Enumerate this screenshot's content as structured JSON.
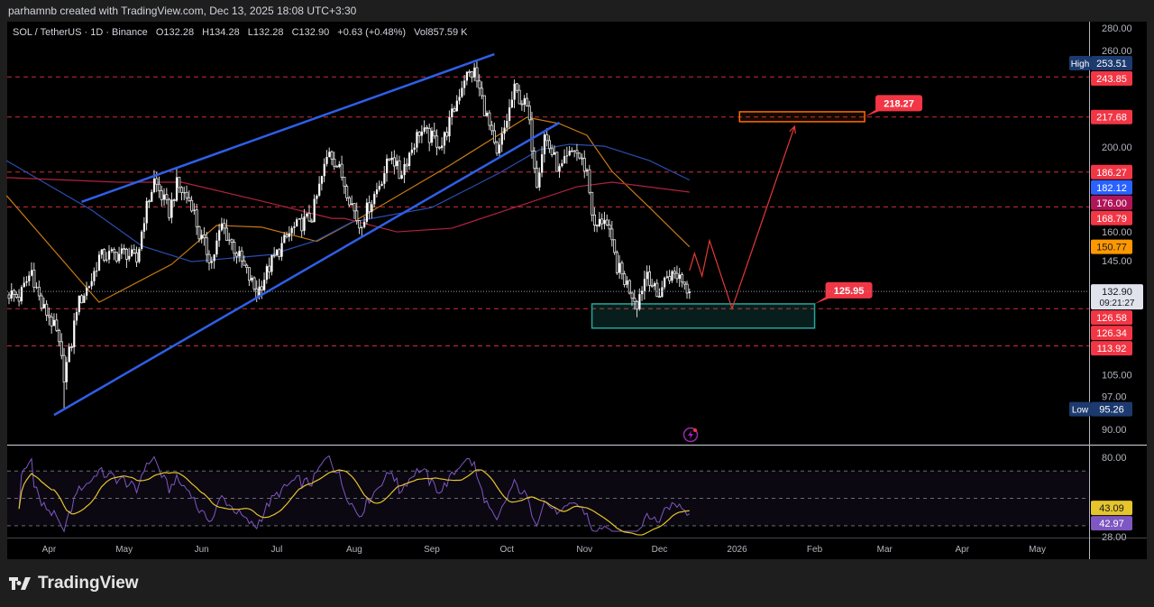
{
  "header": {
    "created_by": "parhamnb created with TradingView.com, Dec 13, 2025 18:08 UTC+3:30"
  },
  "legend": {
    "symbol": "SOL / TetherUS · 1D · Binance",
    "open": "O132.28",
    "high": "H134.28",
    "low": "L132.28",
    "close": "C132.90",
    "change": "+0.63 (+0.48%)",
    "volume": "Vol857.59 K"
  },
  "footer": {
    "brand": "TradingView"
  },
  "colors": {
    "channel": "#2f5fe8",
    "ma_fast": "#c77a12",
    "ma_mid": "#2a4fb0",
    "ma_slow": "#b0223f",
    "level": "#f23645",
    "rsi": "#7e57c2",
    "rsi_ma": "#e5c42c",
    "zone_support": "#26a69a",
    "zone_target": "#ff6d00"
  },
  "chart_data": {
    "type": "candlestick",
    "scale": "log",
    "ylim": [
      90,
      280
    ],
    "xlim": [
      "2025-03-15",
      "2026-05-25"
    ],
    "price_ticks": [
      "280.00",
      "260.00",
      "200.00",
      "160.00",
      "145.00",
      "105.00",
      "97.00",
      "90.00"
    ],
    "time_ticks": [
      {
        "label": "Apr",
        "date": "2025-04-01"
      },
      {
        "label": "May",
        "date": "2025-05-01"
      },
      {
        "label": "Jun",
        "date": "2025-06-01"
      },
      {
        "label": "Jul",
        "date": "2025-07-01"
      },
      {
        "label": "Aug",
        "date": "2025-08-01"
      },
      {
        "label": "Sep",
        "date": "2025-09-01"
      },
      {
        "label": "Oct",
        "date": "2025-10-01"
      },
      {
        "label": "Nov",
        "date": "2025-11-01"
      },
      {
        "label": "Dec",
        "date": "2025-12-01"
      },
      {
        "label": "2026",
        "date": "2026-01-01"
      },
      {
        "label": "Feb",
        "date": "2026-02-01"
      },
      {
        "label": "Mar",
        "date": "2026-03-01"
      },
      {
        "label": "Apr",
        "date": "2026-04-01"
      },
      {
        "label": "May",
        "date": "2026-05-01"
      }
    ],
    "close_path": [
      [
        "2025-03-16",
        132.2
      ],
      [
        "2025-03-20",
        130.6
      ],
      [
        "2025-03-25",
        141.0
      ],
      [
        "2025-03-29",
        127.3
      ],
      [
        "2025-04-01",
        124.1
      ],
      [
        "2025-04-04",
        117.9
      ],
      [
        "2025-04-07",
        105.0
      ],
      [
        "2025-04-10",
        114.9
      ],
      [
        "2025-04-12",
        127.3
      ],
      [
        "2025-04-18",
        137.4
      ],
      [
        "2025-04-21",
        146.5
      ],
      [
        "2025-04-27",
        147.5
      ],
      [
        "2025-05-02",
        148.3
      ],
      [
        "2025-05-06",
        144.6
      ],
      [
        "2025-05-09",
        164.3
      ],
      [
        "2025-05-13",
        181.9
      ],
      [
        "2025-05-19",
        166.4
      ],
      [
        "2025-05-22",
        179.6
      ],
      [
        "2025-05-28",
        170.7
      ],
      [
        "2025-05-31",
        156.1
      ],
      [
        "2025-06-05",
        144.6
      ],
      [
        "2025-06-09",
        160.2
      ],
      [
        "2025-06-15",
        148.3
      ],
      [
        "2025-06-23",
        132.2
      ],
      [
        "2025-06-29",
        144.6
      ],
      [
        "2025-07-07",
        158.1
      ],
      [
        "2025-07-15",
        164.3
      ],
      [
        "2025-07-22",
        199.0
      ],
      [
        "2025-07-27",
        184.3
      ],
      [
        "2025-08-03",
        160.2
      ],
      [
        "2025-08-10",
        177.4
      ],
      [
        "2025-08-16",
        196.4
      ],
      [
        "2025-08-19",
        184.3
      ],
      [
        "2025-08-27",
        209.4
      ],
      [
        "2025-09-05",
        201.5
      ],
      [
        "2025-09-10",
        223.1
      ],
      [
        "2025-09-14",
        244.0
      ],
      [
        "2025-09-18",
        247.1
      ],
      [
        "2025-09-23",
        217.5
      ],
      [
        "2025-09-27",
        193.9
      ],
      [
        "2025-10-04",
        234.8
      ],
      [
        "2025-10-09",
        223.1
      ],
      [
        "2025-10-13",
        181.9
      ],
      [
        "2025-10-16",
        206.7
      ],
      [
        "2025-10-22",
        186.7
      ],
      [
        "2025-10-28",
        199.0
      ],
      [
        "2025-11-02",
        186.7
      ],
      [
        "2025-11-05",
        158.1
      ],
      [
        "2025-11-09",
        164.3
      ],
      [
        "2025-11-14",
        142.8
      ],
      [
        "2025-11-22",
        128.9
      ],
      [
        "2025-11-26",
        141.0
      ],
      [
        "2025-11-30",
        130.6
      ],
      [
        "2025-12-04",
        139.2
      ],
      [
        "2025-12-09",
        139.2
      ],
      [
        "2025-12-13",
        132.9
      ]
    ],
    "period_low": {
      "date": "2025-04-07",
      "value": 95.26
    },
    "period_high": {
      "date": "2025-09-18",
      "value": 253.51
    },
    "moving_averages": [
      {
        "color_key": "ma_fast",
        "points": [
          [
            "2025-03-15",
            174.3
          ],
          [
            "2025-04-21",
            128.9
          ],
          [
            "2025-05-20",
            143.5
          ],
          [
            "2025-06-07",
            160.2
          ],
          [
            "2025-06-25",
            159.4
          ],
          [
            "2025-07-17",
            153.1
          ],
          [
            "2025-08-03",
            163.4
          ],
          [
            "2025-09-08",
            189.7
          ],
          [
            "2025-10-09",
            217.5
          ],
          [
            "2025-10-22",
            213.6
          ],
          [
            "2025-11-02",
            206.7
          ],
          [
            "2025-11-12",
            186.7
          ],
          [
            "2025-11-27",
            168.5
          ],
          [
            "2025-12-13",
            150.77
          ]
        ]
      },
      {
        "color_key": "ma_mid",
        "points": [
          [
            "2025-03-15",
            192.4
          ],
          [
            "2025-04-18",
            167.3
          ],
          [
            "2025-05-08",
            151.2
          ],
          [
            "2025-05-28",
            144.6
          ],
          [
            "2025-06-29",
            147.5
          ],
          [
            "2025-07-17",
            153.5
          ],
          [
            "2025-07-31",
            161.7
          ],
          [
            "2025-09-01",
            168.5
          ],
          [
            "2025-09-28",
            185.8
          ],
          [
            "2025-10-14",
            198.4
          ],
          [
            "2025-10-26",
            201.5
          ],
          [
            "2025-11-09",
            200.4
          ],
          [
            "2025-11-27",
            192.4
          ],
          [
            "2025-12-13",
            182.12
          ]
        ]
      },
      {
        "color_key": "ma_slow",
        "points": [
          [
            "2025-03-15",
            183.4
          ],
          [
            "2025-04-29",
            181.0
          ],
          [
            "2025-05-24",
            181.0
          ],
          [
            "2025-06-25",
            171.6
          ],
          [
            "2025-07-23",
            163.4
          ],
          [
            "2025-07-28",
            163.4
          ],
          [
            "2025-08-18",
            157.3
          ],
          [
            "2025-09-09",
            158.9
          ],
          [
            "2025-10-04",
            168.5
          ],
          [
            "2025-10-29",
            178.7
          ],
          [
            "2025-11-12",
            181.0
          ],
          [
            "2025-12-13",
            176.0
          ]
        ]
      }
    ],
    "channel_lines": [
      {
        "from": [
          "2025-04-14",
          171.2
        ],
        "to": [
          "2025-09-26",
          260.0
        ]
      },
      {
        "from": [
          "2025-04-03",
          93.7
        ],
        "to": [
          "2025-10-22",
          214.2
        ]
      }
    ],
    "levels": [
      243.85,
      217.68,
      186.27,
      168.79,
      126.58,
      113.92
    ],
    "support_zone": {
      "from": "2025-11-04",
      "to": "2026-02-01",
      "top": 128.3,
      "bottom": 119.8,
      "label": "125.95"
    },
    "target_zone": {
      "from": "2026-01-02",
      "to": "2026-02-21",
      "top": 220.9,
      "bottom": 214.8,
      "label": "218.27"
    },
    "projection_path": [
      [
        "2025-12-13",
        141.0
      ],
      [
        "2025-12-15",
        148.0
      ],
      [
        "2025-12-18",
        138.8
      ],
      [
        "2025-12-21",
        153.5
      ],
      [
        "2025-12-30",
        126.6
      ],
      [
        "2026-01-24",
        212.0
      ]
    ],
    "last_price": {
      "value": "132.90",
      "countdown": "09:21:27"
    },
    "axis_badges": [
      {
        "text": "High",
        "value": "253.51",
        "price": 253.51,
        "color": "#1c3a6e"
      },
      {
        "value": "243.85",
        "price": 243.85,
        "color": "#f23645"
      },
      {
        "value": "217.68",
        "price": 217.68,
        "color": "#f23645"
      },
      {
        "value": "186.27",
        "price": 186.27,
        "color": "#f23645"
      },
      {
        "value": "182.12",
        "price": 182.12,
        "color": "#2962ff"
      },
      {
        "value": "176.00",
        "price": 176.0,
        "color": "#b0155a"
      },
      {
        "value": "168.79",
        "price": 168.79,
        "color": "#f23645"
      },
      {
        "value": "150.77",
        "price": 150.77,
        "color": "#ff9800",
        "dark_text": true
      },
      {
        "value": "126.58",
        "price": 127.6,
        "color": "#f23645"
      },
      {
        "value": "126.34",
        "price": 123.3,
        "color": "#f23645"
      },
      {
        "value": "113.92",
        "price": 113.92,
        "color": "#f23645"
      },
      {
        "text": "Low",
        "value": "95.26",
        "price": 95.26,
        "color": "#1c3a6e"
      }
    ],
    "rsi": {
      "period": 14,
      "ylim": [
        28,
        80
      ],
      "bands": [
        70,
        50,
        30
      ],
      "ticks": [
        "80.00",
        "28.00"
      ],
      "ma_value": "43.09",
      "value": "42.97"
    }
  }
}
